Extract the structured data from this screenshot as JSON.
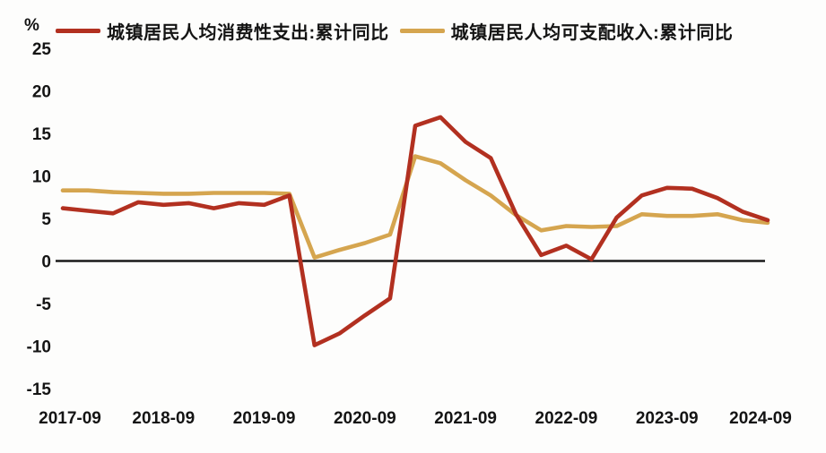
{
  "chart_data": {
    "type": "line",
    "title": "",
    "y_unit_label": "%",
    "grid": "off",
    "legend_position": "top",
    "zero_line": true,
    "ylim": [
      -15,
      25
    ],
    "y_ticks": [
      25,
      20,
      15,
      10,
      5,
      0,
      -5,
      -10,
      -15
    ],
    "x": [
      "2017-09",
      "2017-12",
      "2018-03",
      "2018-06",
      "2018-09",
      "2018-12",
      "2019-03",
      "2019-06",
      "2019-09",
      "2019-12",
      "2020-03",
      "2020-06",
      "2020-09",
      "2020-12",
      "2021-03",
      "2021-06",
      "2021-09",
      "2021-12",
      "2022-03",
      "2022-06",
      "2022-09",
      "2022-12",
      "2023-03",
      "2023-06",
      "2023-09",
      "2023-12",
      "2024-03",
      "2024-06",
      "2024-09"
    ],
    "x_axis_tick_labels": [
      "2017-09",
      "2018-09",
      "2019-09",
      "2020-09",
      "2021-09",
      "2022-09",
      "2023-09",
      "2024-09"
    ],
    "series": [
      {
        "name": "城镇居民人均消费性支出:累计同比",
        "color": "#b23020",
        "values": [
          6.2,
          5.9,
          5.6,
          6.9,
          6.6,
          6.8,
          6.2,
          6.8,
          6.6,
          7.7,
          -9.9,
          -8.5,
          -6.4,
          -4.4,
          15.9,
          16.9,
          14.0,
          12.1,
          5.5,
          0.7,
          1.8,
          0.2,
          5.1,
          7.7,
          8.6,
          8.5,
          7.4,
          5.8,
          4.8
        ]
      },
      {
        "name": "城镇居民人均可支配收入:累计同比",
        "color": "#d5a54f",
        "values": [
          8.3,
          8.3,
          8.1,
          8.0,
          7.9,
          7.9,
          8.0,
          8.0,
          8.0,
          7.9,
          0.4,
          1.3,
          2.1,
          3.1,
          12.3,
          11.5,
          9.5,
          7.7,
          5.4,
          3.6,
          4.1,
          4.0,
          4.1,
          5.5,
          5.3,
          5.3,
          5.5,
          4.8,
          4.5
        ]
      }
    ]
  }
}
